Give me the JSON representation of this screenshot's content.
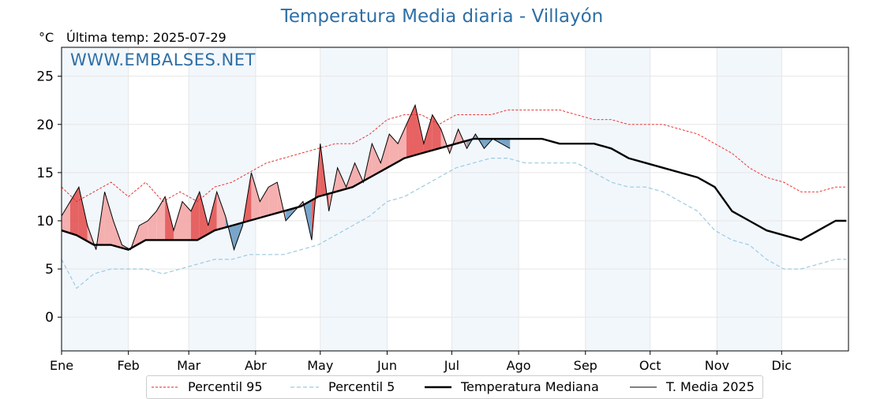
{
  "title": "Temperatura Media diaria - Villayón",
  "unit": "°C",
  "last_temp": "Última temp: 2025-07-29",
  "watermark": "WWW.EMBALSES.NET",
  "colors": {
    "p95": "#e8211e",
    "p5": "#9ccbe0",
    "median": "#000000",
    "year": "#000000",
    "above_fill": "#f4a6a6",
    "above_strong": "#e45252",
    "below_fill": "#6b9bc3",
    "month_band": "#f2f7fc",
    "title": "#2e6fa5"
  },
  "legend": [
    {
      "label": "Percentil 95",
      "style": "p95"
    },
    {
      "label": "Percentil 5",
      "style": "p5"
    },
    {
      "label": "Temperatura Mediana",
      "style": "median"
    },
    {
      "label": "T. Media 2025",
      "style": "year"
    }
  ],
  "chart_data": {
    "type": "line",
    "ylim": [
      -3.5,
      28
    ],
    "yticks": [
      0,
      5,
      10,
      15,
      20,
      25
    ],
    "xlim_days": [
      1,
      366
    ],
    "xticks": [
      {
        "label": "Ene",
        "day": 1
      },
      {
        "label": "Feb",
        "day": 32
      },
      {
        "label": "Mar",
        "day": 60
      },
      {
        "label": "Abr",
        "day": 91
      },
      {
        "label": "May",
        "day": 121
      },
      {
        "label": "Jun",
        "day": 152
      },
      {
        "label": "Jul",
        "day": 182
      },
      {
        "label": "Ago",
        "day": 213
      },
      {
        "label": "Sep",
        "day": 244
      },
      {
        "label": "Oct",
        "day": 274
      },
      {
        "label": "Nov",
        "day": 305
      },
      {
        "label": "Dic",
        "day": 335
      }
    ],
    "grid": true,
    "legend_position": "bottom",
    "series": [
      {
        "name": "Percentil 95",
        "x": [
          1,
          8,
          16,
          24,
          32,
          40,
          48,
          56,
          64,
          72,
          80,
          88,
          96,
          104,
          112,
          120,
          128,
          136,
          144,
          152,
          160,
          168,
          176,
          184,
          192,
          200,
          208,
          216,
          224,
          232,
          240,
          248,
          256,
          264,
          272,
          280,
          288,
          296,
          304,
          312,
          320,
          328,
          336,
          344,
          352,
          360,
          365
        ],
        "values": [
          13.5,
          12.0,
          13.0,
          14.0,
          12.5,
          14.0,
          12.0,
          13.0,
          12.0,
          13.5,
          14.0,
          15.0,
          16.0,
          16.5,
          17.0,
          17.5,
          18.0,
          18.0,
          19.0,
          20.5,
          21.0,
          21.0,
          20.0,
          21.0,
          21.0,
          21.0,
          21.5,
          21.5,
          21.5,
          21.5,
          21.0,
          20.5,
          20.5,
          20.0,
          20.0,
          20.0,
          19.5,
          19.0,
          18.0,
          17.0,
          15.5,
          14.5,
          14.0,
          13.0,
          13.0,
          13.5,
          13.5
        ]
      },
      {
        "name": "Percentil 5",
        "x": [
          1,
          8,
          16,
          24,
          32,
          40,
          48,
          56,
          64,
          72,
          80,
          88,
          96,
          104,
          112,
          120,
          128,
          136,
          144,
          152,
          160,
          168,
          176,
          184,
          192,
          200,
          208,
          216,
          224,
          232,
          240,
          248,
          256,
          264,
          272,
          280,
          288,
          296,
          304,
          312,
          320,
          328,
          336,
          344,
          352,
          360,
          365
        ],
        "values": [
          6.0,
          3.0,
          4.5,
          5.0,
          5.0,
          5.0,
          4.5,
          5.0,
          5.5,
          6.0,
          6.0,
          6.5,
          6.5,
          6.5,
          7.0,
          7.5,
          8.5,
          9.5,
          10.5,
          12.0,
          12.5,
          13.5,
          14.5,
          15.5,
          16.0,
          16.5,
          16.5,
          16.0,
          16.0,
          16.0,
          16.0,
          15.0,
          14.0,
          13.5,
          13.5,
          13.0,
          12.0,
          11.0,
          9.0,
          8.0,
          7.5,
          6.0,
          5.0,
          5.0,
          5.5,
          6.0,
          6.0
        ]
      },
      {
        "name": "Temperatura Mediana",
        "x": [
          1,
          8,
          16,
          24,
          32,
          40,
          48,
          56,
          64,
          72,
          80,
          88,
          96,
          104,
          112,
          120,
          128,
          136,
          144,
          152,
          160,
          168,
          176,
          184,
          192,
          200,
          208,
          216,
          224,
          232,
          240,
          248,
          256,
          264,
          272,
          280,
          288,
          296,
          304,
          312,
          320,
          328,
          336,
          344,
          352,
          360,
          365
        ],
        "values": [
          9.0,
          8.5,
          7.5,
          7.5,
          7.0,
          8.0,
          8.0,
          8.0,
          8.0,
          9.0,
          9.5,
          10.0,
          10.5,
          11.0,
          11.5,
          12.5,
          13.0,
          13.5,
          14.5,
          15.5,
          16.5,
          17.0,
          17.5,
          18.0,
          18.5,
          18.5,
          18.5,
          18.5,
          18.5,
          18.0,
          18.0,
          18.0,
          17.5,
          16.5,
          16.0,
          15.5,
          15.0,
          14.5,
          13.5,
          11.0,
          10.0,
          9.0,
          8.5,
          8.0,
          9.0,
          10.0,
          10.0
        ]
      },
      {
        "name": "T. Media 2025",
        "x": [
          1,
          5,
          9,
          13,
          17,
          21,
          25,
          29,
          33,
          37,
          41,
          45,
          49,
          53,
          57,
          61,
          65,
          69,
          73,
          77,
          81,
          85,
          89,
          93,
          97,
          101,
          105,
          109,
          113,
          117,
          121,
          125,
          129,
          133,
          137,
          141,
          145,
          149,
          153,
          157,
          161,
          165,
          169,
          173,
          177,
          181,
          185,
          189,
          193,
          197,
          201,
          205,
          209
        ],
        "values": [
          10.5,
          12.0,
          13.5,
          9.5,
          7.0,
          13.0,
          10.0,
          7.5,
          7.0,
          9.5,
          10.0,
          11.0,
          12.5,
          9.0,
          12.0,
          11.0,
          13.0,
          9.5,
          13.0,
          10.5,
          7.0,
          9.5,
          15.0,
          12.0,
          13.5,
          14.0,
          10.0,
          11.0,
          12.0,
          8.0,
          18.0,
          11.0,
          15.5,
          13.5,
          16.0,
          14.0,
          18.0,
          16.0,
          19.0,
          18.0,
          20.0,
          22.0,
          18.0,
          21.0,
          19.5,
          17.0,
          19.5,
          17.5,
          19.0,
          17.5,
          18.5,
          18.0,
          17.5
        ]
      }
    ]
  }
}
